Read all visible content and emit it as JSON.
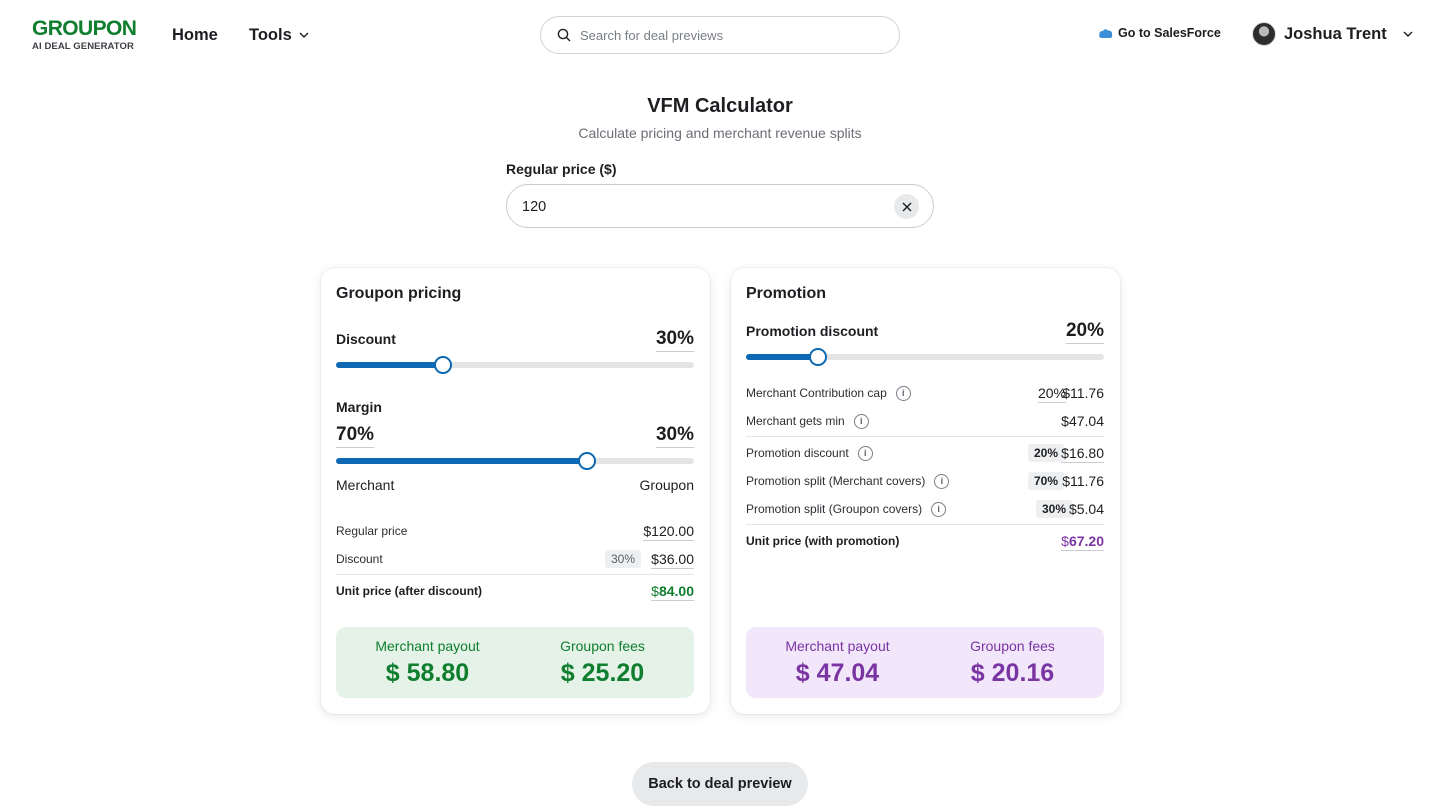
{
  "header": {
    "logo_main": "GROUPON",
    "logo_sub": "AI DEAL GENERATOR",
    "nav": {
      "home": "Home",
      "tools": "Tools"
    },
    "search_placeholder": "Search for deal previews",
    "salesforce_link": "Go to SalesForce",
    "user_name": "Joshua Trent"
  },
  "page": {
    "title": "VFM Calculator",
    "subtitle": "Calculate pricing and merchant revenue splits",
    "price_label": "Regular price ($)",
    "price_value": "120",
    "back_button": "Back to deal preview"
  },
  "groupon_pricing": {
    "title": "Groupon pricing",
    "discount_label": "Discount",
    "discount_value": "30%",
    "discount_level": 0.3,
    "margin_label": "Margin",
    "margin_merchant_value": "70%",
    "margin_groupon_value": "30%",
    "margin_level": 0.7,
    "merchant_label": "Merchant",
    "groupon_label": "Groupon",
    "rows": {
      "regular_price_label": "Regular price",
      "regular_price_value": "$120.00",
      "discount_label": "Discount",
      "discount_pill": "30%",
      "discount_value": "$36.00",
      "unit_price_label": "Unit price (after discount)",
      "unit_price_currency": "$",
      "unit_price_value": "84.00"
    },
    "summary": {
      "merchant_payout_label": "Merchant payout",
      "merchant_payout_value": "$ 58.80",
      "groupon_fees_label": "Groupon fees",
      "groupon_fees_value": "$ 25.20"
    }
  },
  "promotion": {
    "title": "Promotion",
    "discount_label": "Promotion discount",
    "discount_value": "20%",
    "discount_level": 0.2,
    "rows": {
      "contribution_cap_label": "Merchant Contribution cap",
      "contribution_cap_pct": "20%",
      "contribution_cap_value": "$11.76",
      "merchant_min_label": "Merchant gets min",
      "merchant_min_value": "$47.04",
      "promo_discount_label": "Promotion discount",
      "promo_discount_pill": "20%",
      "promo_discount_value": "$16.80",
      "split_merchant_label": "Promotion split (Merchant covers)",
      "split_merchant_pill": "70%",
      "split_merchant_value": "$11.76",
      "split_groupon_label": "Promotion split (Groupon covers)",
      "split_groupon_pill": "30%",
      "split_groupon_value": "$5.04",
      "unit_price_label": "Unit price (with promotion)",
      "unit_price_currency": "$",
      "unit_price_value": "67.20"
    },
    "summary": {
      "merchant_payout_label": "Merchant payout",
      "merchant_payout_value": "$ 47.04",
      "groupon_fees_label": "Groupon fees",
      "groupon_fees_value": "$ 20.16"
    }
  },
  "icons": {
    "search": "search-icon",
    "chevron": "chevron-down-icon",
    "cloud": "salesforce-cloud-icon",
    "clear": "close-icon",
    "info": "info-icon",
    "info_glyph": "i"
  },
  "colors": {
    "brand_green": "#0f7e2e",
    "slider_blue": "#0d69b3",
    "promo_purple": "#7a35a3",
    "summary_green_bg": "#e4f2e7",
    "summary_purple_bg": "#f1e6fa"
  }
}
